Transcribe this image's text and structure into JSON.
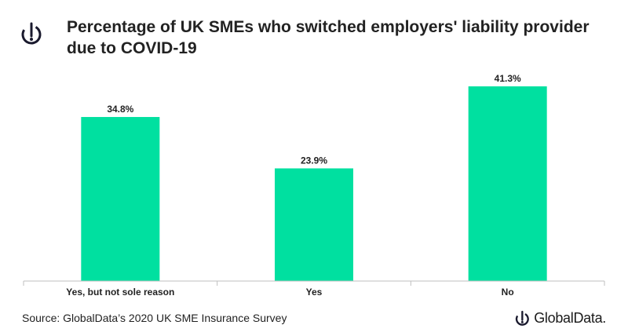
{
  "title": "Percentage of UK SMEs who switched employers' liability provider due to COVID-19",
  "source": "Source: GlobalData’s 2020 UK SME Insurance Survey",
  "brand": "GlobalData.",
  "colors": {
    "bar": "#00e0a0",
    "text": "#222222",
    "axis": "#bfbfbf"
  },
  "icons": {
    "logo": "globaldata-logo-icon"
  },
  "chart_data": {
    "type": "bar",
    "title": "Percentage of UK SMEs who switched employers' liability provider due to COVID-19",
    "categories": [
      "Yes, but not sole reason",
      "Yes",
      "No"
    ],
    "values": [
      34.8,
      23.9,
      41.3
    ],
    "data_labels": [
      "34.8%",
      "23.9%",
      "41.3%"
    ],
    "unit": "%",
    "ylim": [
      0,
      45
    ],
    "grid": false,
    "legend": "none"
  }
}
